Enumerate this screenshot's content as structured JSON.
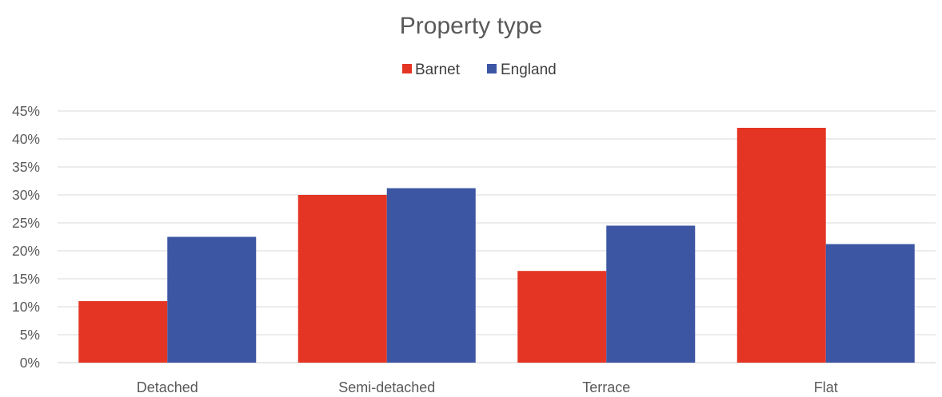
{
  "chart_data": {
    "type": "bar",
    "title": "Property type",
    "categories": [
      "Detached",
      "Semi-detached",
      "Terrace",
      "Flat"
    ],
    "series": [
      {
        "name": "Barnet",
        "color": "#e43524",
        "values": [
          0.11,
          0.3,
          0.164,
          0.42
        ]
      },
      {
        "name": "England",
        "color": "#3c56a4",
        "values": [
          0.225,
          0.312,
          0.245,
          0.212
        ]
      }
    ],
    "ylim": [
      0,
      0.45
    ],
    "yticks": [
      0,
      0.05,
      0.1,
      0.15,
      0.2,
      0.25,
      0.3,
      0.35,
      0.4,
      0.45
    ],
    "ytick_labels": [
      "0%",
      "5%",
      "10%",
      "15%",
      "20%",
      "25%",
      "30%",
      "35%",
      "40%",
      "45%"
    ],
    "legend_position": "top",
    "grid": true
  }
}
